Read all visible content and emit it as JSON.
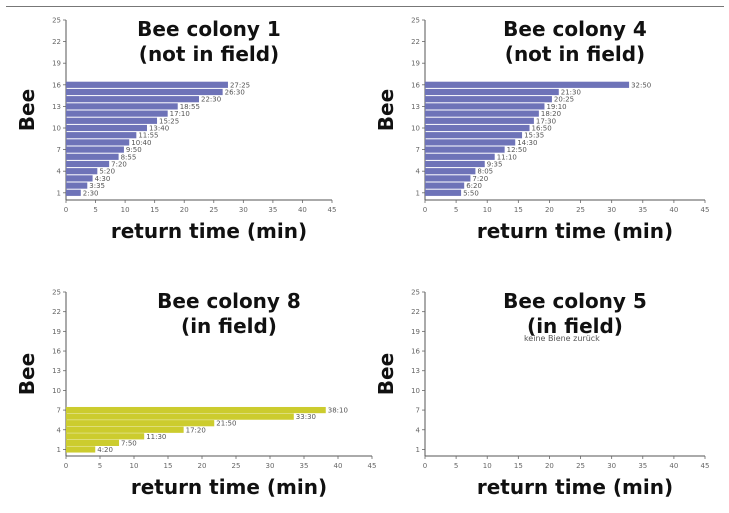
{
  "chart_data": [
    {
      "type": "bar",
      "orientation": "horizontal",
      "title": [
        "Bee colony 1",
        "(not in field)"
      ],
      "xlabel": "return time (min)",
      "ylabel": "Bee",
      "xlim": [
        0,
        45
      ],
      "xticks": [
        0,
        5,
        10,
        15,
        20,
        25,
        30,
        35,
        40,
        45
      ],
      "ylim": [
        0,
        25
      ],
      "yticks": [
        1,
        4,
        7,
        10,
        13,
        16,
        19,
        22,
        25
      ],
      "color": "#6e73b8",
      "bars": [
        {
          "bee": 1,
          "value": 2.5,
          "label": "2:30"
        },
        {
          "bee": 2,
          "value": 3.6,
          "label": "3:35"
        },
        {
          "bee": 3,
          "value": 4.5,
          "label": "4:30"
        },
        {
          "bee": 4,
          "value": 5.3,
          "label": "5:20"
        },
        {
          "bee": 5,
          "value": 7.3,
          "label": "7:20"
        },
        {
          "bee": 6,
          "value": 8.9,
          "label": "8:55"
        },
        {
          "bee": 7,
          "value": 9.8,
          "label": "9:50"
        },
        {
          "bee": 8,
          "value": 10.7,
          "label": "10:40"
        },
        {
          "bee": 9,
          "value": 11.9,
          "label": "11:55"
        },
        {
          "bee": 10,
          "value": 13.7,
          "label": "13:40"
        },
        {
          "bee": 11,
          "value": 15.4,
          "label": "15:25"
        },
        {
          "bee": 12,
          "value": 17.2,
          "label": "17:10"
        },
        {
          "bee": 13,
          "value": 18.9,
          "label": "18:55"
        },
        {
          "bee": 14,
          "value": 22.5,
          "label": "22:30"
        },
        {
          "bee": 15,
          "value": 26.5,
          "label": "26:30"
        },
        {
          "bee": 16,
          "value": 27.4,
          "label": "27:25"
        }
      ]
    },
    {
      "type": "bar",
      "orientation": "horizontal",
      "title": [
        "Bee colony 4",
        "(not in field)"
      ],
      "xlabel": "return time (min)",
      "ylabel": "Bee",
      "xlim": [
        0,
        45
      ],
      "xticks": [
        0,
        5,
        10,
        15,
        20,
        25,
        30,
        35,
        40,
        45
      ],
      "ylim": [
        0,
        25
      ],
      "yticks": [
        1,
        4,
        7,
        10,
        13,
        16,
        19,
        22,
        25
      ],
      "color": "#6e73b8",
      "bars": [
        {
          "bee": 1,
          "value": 5.8,
          "label": "5:50"
        },
        {
          "bee": 2,
          "value": 6.3,
          "label": "6:20"
        },
        {
          "bee": 3,
          "value": 7.3,
          "label": "7:20"
        },
        {
          "bee": 4,
          "value": 8.1,
          "label": "8:05"
        },
        {
          "bee": 5,
          "value": 9.6,
          "label": "9:35"
        },
        {
          "bee": 6,
          "value": 11.2,
          "label": "11:10"
        },
        {
          "bee": 7,
          "value": 12.8,
          "label": "12:50"
        },
        {
          "bee": 8,
          "value": 14.5,
          "label": "14:30"
        },
        {
          "bee": 9,
          "value": 15.6,
          "label": "15:35"
        },
        {
          "bee": 10,
          "value": 16.8,
          "label": "16:50"
        },
        {
          "bee": 11,
          "value": 17.5,
          "label": "17:30"
        },
        {
          "bee": 12,
          "value": 18.3,
          "label": "18:20"
        },
        {
          "bee": 13,
          "value": 19.2,
          "label": "19:10"
        },
        {
          "bee": 14,
          "value": 20.4,
          "label": "20:25"
        },
        {
          "bee": 15,
          "value": 21.5,
          "label": "21:30"
        },
        {
          "bee": 16,
          "value": 32.8,
          "label": "32:50"
        }
      ]
    },
    {
      "type": "bar",
      "orientation": "horizontal",
      "title": [
        "Bee colony 8",
        "(in field)"
      ],
      "xlabel": "return time (min)",
      "ylabel": "Bee",
      "xlim": [
        0,
        45
      ],
      "xticks": [
        0,
        5,
        10,
        15,
        20,
        25,
        30,
        35,
        40,
        45
      ],
      "ylim": [
        0,
        25
      ],
      "yticks": [
        1,
        4,
        7,
        10,
        13,
        16,
        19,
        22,
        25
      ],
      "color": "#cccc2e",
      "bars": [
        {
          "bee": 1,
          "value": 4.3,
          "label": "4:20"
        },
        {
          "bee": 2,
          "value": 7.8,
          "label": "7:50"
        },
        {
          "bee": 3,
          "value": 11.5,
          "label": "11:30"
        },
        {
          "bee": 4,
          "value": 17.3,
          "label": "17:20"
        },
        {
          "bee": 5,
          "value": 21.8,
          "label": "21:50"
        },
        {
          "bee": 6,
          "value": 33.5,
          "label": "33:30"
        },
        {
          "bee": 7,
          "value": 38.2,
          "label": "38:10"
        }
      ]
    },
    {
      "type": "bar",
      "orientation": "horizontal",
      "title": [
        "Bee colony 5",
        "(in field)"
      ],
      "xlabel": "return time (min)",
      "ylabel": "Bee",
      "xlim": [
        0,
        45
      ],
      "xticks": [
        0,
        5,
        10,
        15,
        20,
        25,
        30,
        35,
        40,
        45
      ],
      "ylim": [
        0,
        25
      ],
      "yticks": [
        1,
        4,
        7,
        10,
        13,
        16,
        19,
        22,
        25
      ],
      "color": "#6e73b8",
      "bars": [],
      "annotation": "keine Biene zurück"
    }
  ]
}
